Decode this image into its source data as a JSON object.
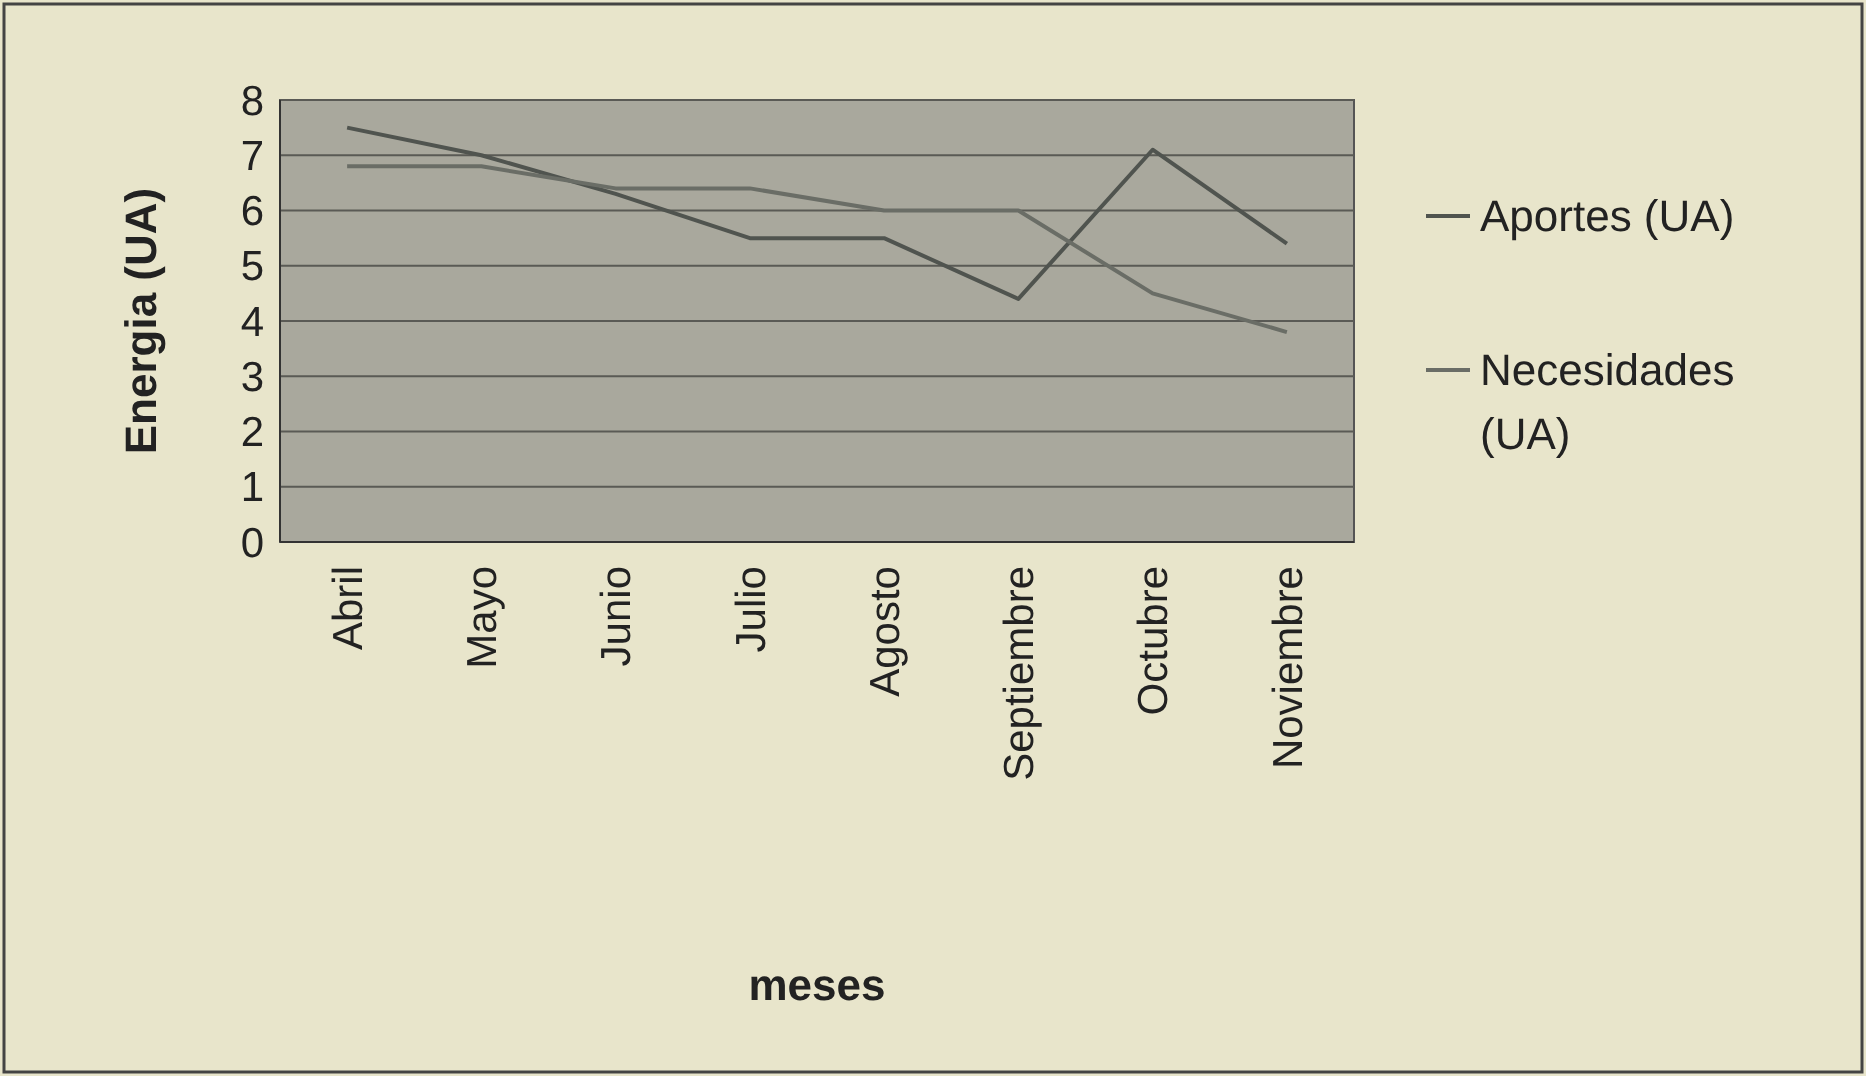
{
  "chart_data": {
    "type": "line",
    "xlabel": "meses",
    "ylabel": "Energia (UA)",
    "categories": [
      "Abril",
      "Mayo",
      "Junio",
      "Julio",
      "Agosto",
      "Septiembre",
      "Octubre",
      "Noviembre"
    ],
    "series": [
      {
        "name": "Aportes (UA)",
        "color": "#50544f",
        "values": [
          7.5,
          7.0,
          6.3,
          5.5,
          5.5,
          4.4,
          7.1,
          5.4
        ]
      },
      {
        "name": "Necesidades (UA)",
        "color": "#6a6d66",
        "values": [
          6.8,
          6.8,
          6.4,
          6.4,
          6.0,
          6.0,
          4.5,
          3.8
        ]
      }
    ],
    "ylim": [
      0,
      8
    ],
    "yticks": [
      0,
      1,
      2,
      3,
      4,
      5,
      6,
      7,
      8
    ],
    "grid": "y",
    "legend": "right",
    "marker": "none",
    "line_style": "solid"
  }
}
